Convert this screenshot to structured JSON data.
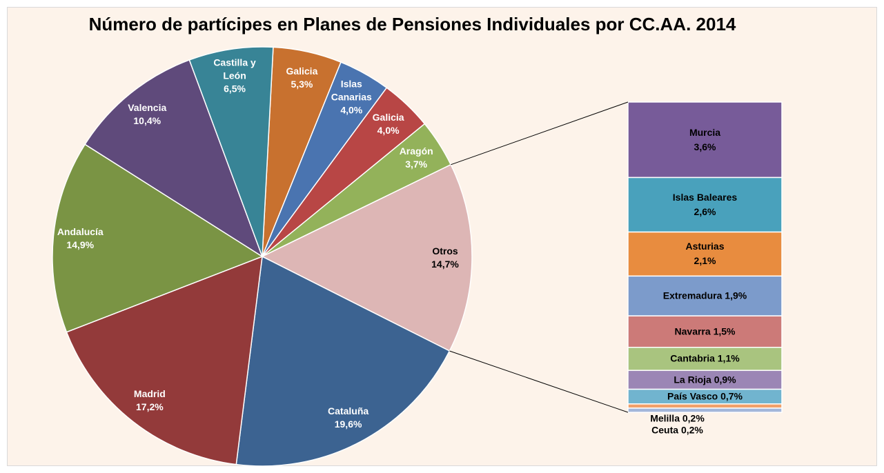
{
  "chart_data": {
    "type": "pie-of-bar",
    "title": "Número de partícipes en Planes de Pensiones Individuales por CC.AA. 2014",
    "categories": [
      "Galicia",
      "Islas Canarias",
      "Galicia",
      "Aragón",
      "Otros",
      "Cataluña",
      "Madrid",
      "Andalucía",
      "Valencia",
      "Castilla y León"
    ],
    "values": [
      5.3,
      4.0,
      4.0,
      3.7,
      14.7,
      19.6,
      17.2,
      14.9,
      10.4,
      6.5
    ],
    "value_labels": [
      "5,3%",
      "4,0%",
      "4,0%",
      "3,7%",
      "14,7%",
      "19,6%",
      "17,2%",
      "14,9%",
      "10,4%",
      "6,5%"
    ],
    "colors": [
      "#c8712f",
      "#4a74b0",
      "#b84645",
      "#93b25a",
      "#ddb6b5",
      "#3c6391",
      "#933a3a",
      "#7a9444",
      "#5f4a7b",
      "#388496"
    ],
    "breakdown": {
      "categories": [
        "Murcia",
        "Islas Baleares",
        "Asturias",
        "Extremadura",
        "Navarra",
        "Cantabria",
        "La Rioja",
        "País Vasco",
        "Melilla",
        "Ceuta"
      ],
      "values": [
        3.6,
        2.6,
        2.1,
        1.9,
        1.5,
        1.1,
        0.9,
        0.7,
        0.2,
        0.2
      ],
      "value_labels": [
        "3,6%",
        "2,6%",
        "2,1%",
        "1,9%",
        "1,5%",
        "1,1%",
        "0,9%",
        "0,7%",
        "0,2%",
        "0,2%"
      ],
      "colors": [
        "#775b99",
        "#49a1bc",
        "#e88c3f",
        "#7c9bcb",
        "#cc7a78",
        "#a9c47f",
        "#9b86b5",
        "#71b4cf",
        "#f0a06a",
        "#a3b6da"
      ]
    }
  }
}
